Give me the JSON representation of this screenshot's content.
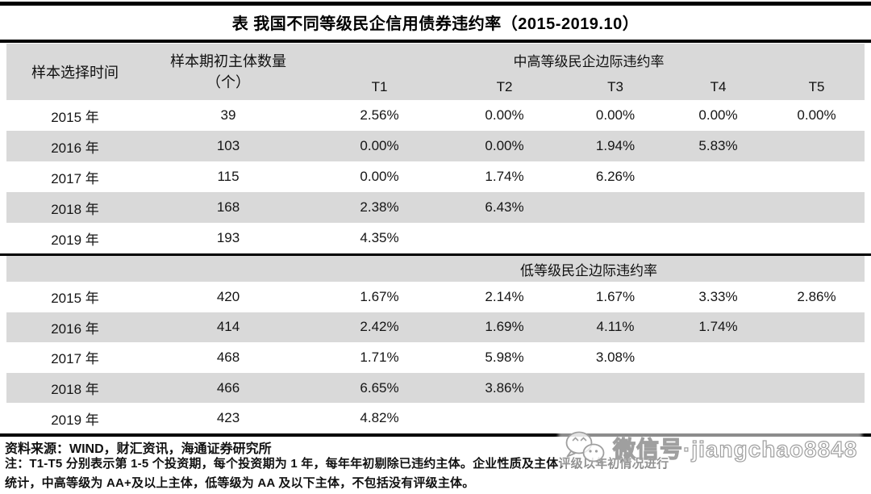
{
  "title": "表 我国不同等级民企信用债券违约率（2015-2019.10）",
  "colors": {
    "band_gray": "#d9d9d9",
    "rule_black": "#000000",
    "text": "#1a1a1a",
    "watermark_gray": "#9f9f9f"
  },
  "table": {
    "header": {
      "time_label": "样本选择时间",
      "count_label_line1": "样本期初主体数量",
      "count_label_line2": "（个）",
      "group1_label": "中高等级民企边际违约率",
      "group2_label": "低等级民企边际违约率",
      "periods": [
        "T1",
        "T2",
        "T3",
        "T4",
        "T5"
      ]
    },
    "section1_rows": [
      {
        "year": "2015 年",
        "count": "39",
        "values": [
          "2.56%",
          "0.00%",
          "0.00%",
          "0.00%",
          "0.00%"
        ]
      },
      {
        "year": "2016 年",
        "count": "103",
        "values": [
          "0.00%",
          "0.00%",
          "1.94%",
          "5.83%",
          ""
        ]
      },
      {
        "year": "2017 年",
        "count": "115",
        "values": [
          "0.00%",
          "1.74%",
          "6.26%",
          "",
          ""
        ]
      },
      {
        "year": "2018 年",
        "count": "168",
        "values": [
          "2.38%",
          "6.43%",
          "",
          "",
          ""
        ]
      },
      {
        "year": "2019 年",
        "count": "193",
        "values": [
          "4.35%",
          "",
          "",
          "",
          ""
        ]
      }
    ],
    "section2_rows": [
      {
        "year": "2015 年",
        "count": "420",
        "values": [
          "1.67%",
          "2.14%",
          "1.67%",
          "3.33%",
          "2.86%"
        ]
      },
      {
        "year": "2016 年",
        "count": "414",
        "values": [
          "2.42%",
          "1.69%",
          "4.11%",
          "1.74%",
          ""
        ]
      },
      {
        "year": "2017 年",
        "count": "468",
        "values": [
          "1.71%",
          "5.98%",
          "3.08%",
          "",
          ""
        ]
      },
      {
        "year": "2018 年",
        "count": "466",
        "values": [
          "6.65%",
          "3.86%",
          "",
          "",
          ""
        ]
      },
      {
        "year": "2019 年",
        "count": "423",
        "values": [
          "4.82%",
          "",
          "",
          "",
          ""
        ]
      }
    ]
  },
  "footer": {
    "source": "资料来源：WIND，财汇资讯，海通证券研究所",
    "note_line1": "注：T1-T5 分别表示第 1-5 个投资期，每个投资期为 1 年，每年年初剔除已违约主体。企业性质及主体评级以年初情况进行",
    "note_line2": "统计，中高等级为 AA+及以上主体，低等级为 AA 及以下主体，不包括没有评级主体。"
  },
  "watermark": {
    "label": "微信号·jiangchao8848",
    "icon": "wechat-icon"
  }
}
